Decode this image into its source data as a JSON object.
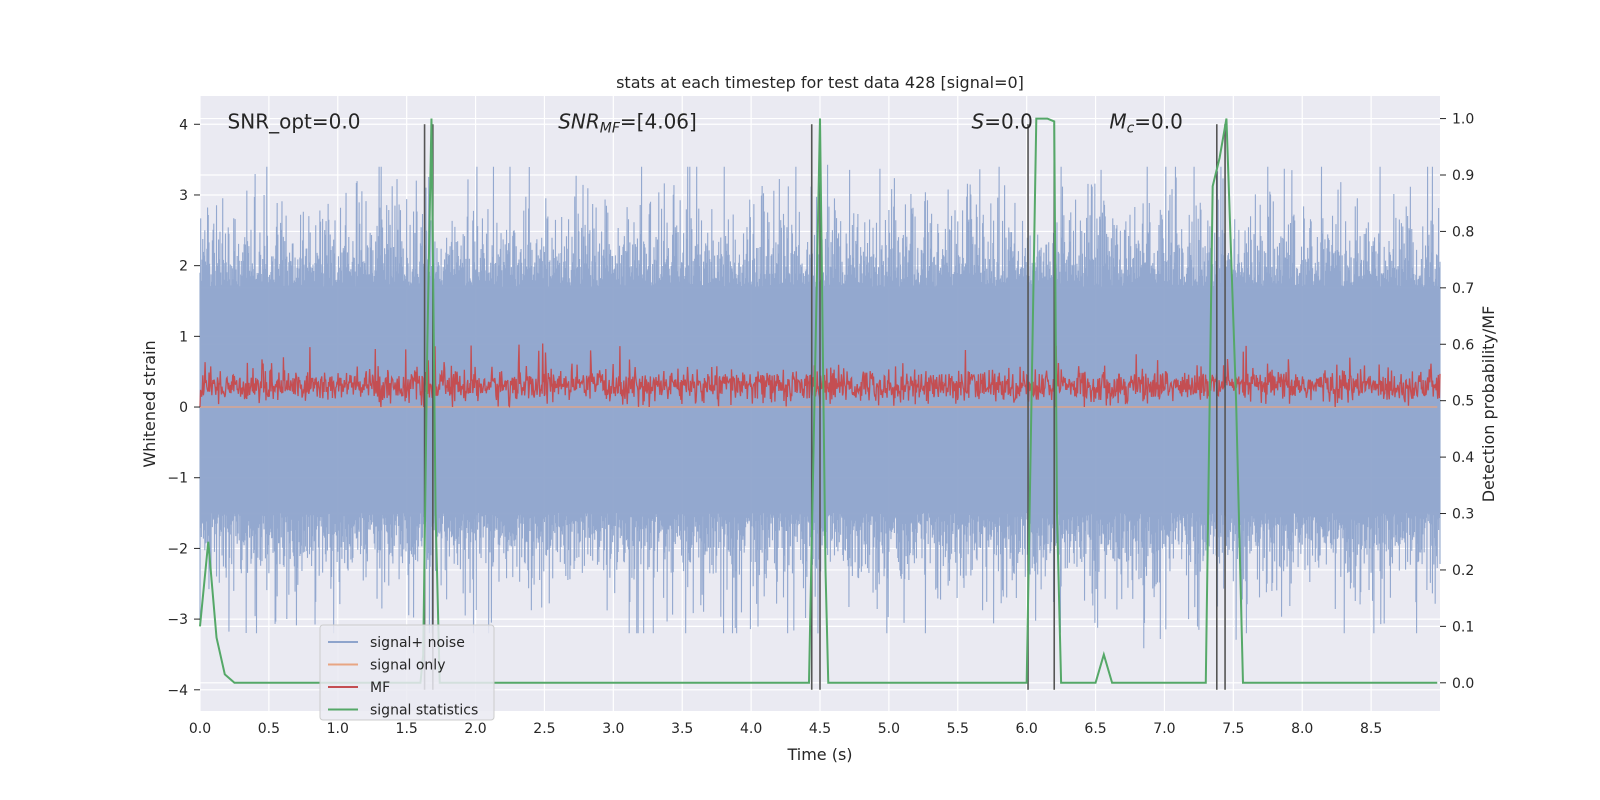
{
  "chart_data": {
    "type": "line",
    "title": "stats at each timestep for test data 428 [signal=0]",
    "xlabel": "Time (s)",
    "ylabel": "Whitened strain",
    "y2label": "Detection probability/MF",
    "xlim": [
      0.0,
      9.0
    ],
    "ylim": [
      -4.3,
      4.4
    ],
    "y2lim": [
      -0.05,
      1.04
    ],
    "xticks": [
      "0.0",
      "0.5",
      "1.0",
      "1.5",
      "2.0",
      "2.5",
      "3.0",
      "3.5",
      "4.0",
      "4.5",
      "5.0",
      "5.5",
      "6.0",
      "6.5",
      "7.0",
      "7.5",
      "8.0",
      "8.5"
    ],
    "yticks": [
      "-4",
      "-3",
      "-2",
      "-1",
      "0",
      "1",
      "2",
      "3",
      "4"
    ],
    "y2ticks": [
      "0.0",
      "0.1",
      "0.2",
      "0.3",
      "0.4",
      "0.5",
      "0.6",
      "0.7",
      "0.8",
      "0.9",
      "1.0"
    ],
    "grid": true,
    "legend_position": "lower-left",
    "annotations": [
      {
        "id": "snr-opt",
        "text": "SNR_opt=0.0",
        "x": 0.2,
        "y": 4.05
      },
      {
        "id": "snr-mf",
        "text": "SNR_MF=[4.06]",
        "x": 2.6,
        "y": 4.05
      },
      {
        "id": "s-stat",
        "text": "S=0.0",
        "x": 5.6,
        "y": 4.05
      },
      {
        "id": "mc",
        "text": "M_c=0.0",
        "x": 6.6,
        "y": 4.05
      }
    ],
    "vlines": [
      1.63,
      1.69,
      4.44,
      4.5,
      6.01,
      6.2,
      7.38,
      7.44
    ],
    "vline_range": [
      -4.0,
      4.0
    ],
    "series": [
      {
        "name": "signal+ noise",
        "axis": "left",
        "color": "#8ea4cc",
        "description_extent": {
          "x": [
            0.0,
            9.0
          ],
          "typical_range": [
            -1.5,
            1.7
          ],
          "peak_range": [
            -3.2,
            3.4
          ]
        }
      },
      {
        "name": "signal only",
        "axis": "left",
        "color": "#e8a583",
        "values_constant": 0.0
      },
      {
        "name": "MF",
        "axis": "left",
        "color": "#c44e52",
        "description_extent": {
          "x": [
            0.0,
            9.0
          ],
          "typical_range": [
            0.05,
            0.6
          ],
          "peak_max": 0.95
        }
      },
      {
        "name": "signal statistics",
        "axis": "right",
        "color": "#55a868",
        "x": [
          0.0,
          0.06,
          0.12,
          0.18,
          0.25,
          1.6,
          1.62,
          1.65,
          1.68,
          1.71,
          1.74,
          4.42,
          4.46,
          4.5,
          4.54,
          4.56,
          6.0,
          6.07,
          6.15,
          6.2,
          6.22,
          6.25,
          6.5,
          6.56,
          6.62,
          7.3,
          7.35,
          7.4,
          7.45,
          7.52,
          7.57,
          8.98
        ],
        "y": [
          0.1,
          0.25,
          0.08,
          0.015,
          0.0,
          0.0,
          0.05,
          0.6,
          1.0,
          0.3,
          0.0,
          0.0,
          0.5,
          1.0,
          0.2,
          0.0,
          0.0,
          1.0,
          1.0,
          0.995,
          0.3,
          0.0,
          0.0,
          0.05,
          0.0,
          0.0,
          0.88,
          0.93,
          1.0,
          0.5,
          0.0,
          0.0
        ]
      }
    ]
  }
}
